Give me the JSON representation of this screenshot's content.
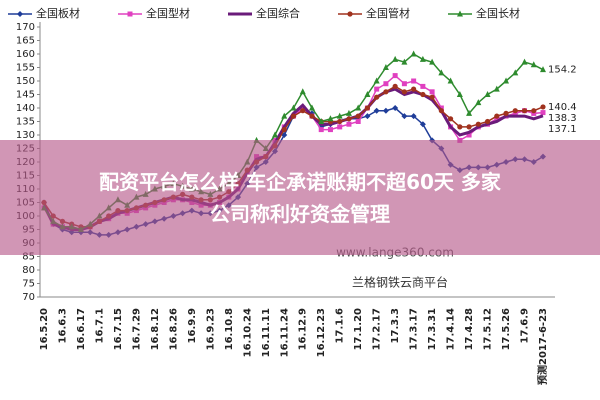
{
  "chart_data": {
    "type": "line",
    "categories": [
      "16.5.20",
      null,
      "16.6.3",
      null,
      "16.6.17",
      null,
      "16.7.1",
      null,
      "16.7.15",
      null,
      "16.7.29",
      null,
      "16.8.12",
      null,
      "16.8.26",
      null,
      "16.9.9",
      null,
      "16.9.23",
      null,
      "16.10.8",
      null,
      "16.10.24",
      null,
      "16.11.11",
      null,
      "16.11.24",
      null,
      "16.12.9",
      null,
      "16.12.23",
      null,
      "17.1.6",
      null,
      "17.1.20",
      null,
      "17.2.17",
      null,
      "17.3.3",
      null,
      "17.3.17",
      null,
      "17.3.31",
      null,
      "17.4.14",
      null,
      "17.4.28",
      null,
      "17.5.12",
      null,
      "17.5.26",
      null,
      "17.6.9",
      null,
      "预测2017-6-23"
    ],
    "series": [
      {
        "name": "全国板材",
        "color": "#1f3d99",
        "marker": "diamond",
        "label_last": false,
        "values": [
          105,
          97,
          95,
          94,
          94,
          94,
          93,
          93,
          94,
          95,
          96,
          97,
          98,
          99,
          100,
          101,
          102,
          101,
          101,
          102,
          104,
          107,
          112,
          118,
          120,
          124,
          130,
          137,
          140,
          138,
          133,
          134,
          135,
          136,
          136,
          137,
          139,
          139,
          140,
          137,
          137,
          134,
          128,
          125,
          119,
          117,
          118,
          118,
          118,
          119,
          120,
          121,
          121,
          120,
          122
        ]
      },
      {
        "name": "全国型材",
        "color": "#e040c0",
        "marker": "square",
        "label_last": true,
        "values": [
          103,
          97,
          96,
          96,
          95,
          96,
          98,
          99,
          101,
          101,
          102,
          103,
          104,
          105,
          106,
          106,
          105,
          104,
          104,
          105,
          107,
          110,
          116,
          122,
          122,
          128,
          133,
          137,
          140,
          137,
          132,
          132,
          133,
          134,
          135,
          140,
          147,
          149,
          152,
          149,
          150,
          148,
          146,
          140,
          133,
          128,
          130,
          133,
          134,
          136,
          137,
          138,
          139,
          138,
          138.3
        ]
      },
      {
        "name": "全国综合",
        "color": "#6a1b7a",
        "marker": "none",
        "label_last": true,
        "values": [
          104,
          97,
          96,
          95,
          95,
          96,
          98,
          99,
          101,
          102,
          103,
          104,
          105,
          106,
          107,
          106,
          106,
          105,
          104,
          105,
          107,
          110,
          116,
          121,
          122,
          127,
          133,
          138,
          141,
          137,
          134,
          134,
          135,
          136,
          137,
          140,
          144,
          146,
          147,
          145,
          146,
          145,
          143,
          139,
          133,
          130,
          131,
          133,
          134,
          135,
          137,
          137,
          137,
          136,
          137.1
        ]
      },
      {
        "name": "全国管材",
        "color": "#a0321e",
        "marker": "circle",
        "label_last": true,
        "values": [
          105,
          100,
          98,
          97,
          96,
          96,
          98,
          100,
          102,
          102,
          103,
          104,
          105,
          106,
          107,
          108,
          107,
          106,
          106,
          107,
          109,
          112,
          117,
          120,
          122,
          126,
          132,
          137,
          139,
          137,
          135,
          135,
          135,
          136,
          137,
          140,
          144,
          146,
          148,
          146,
          147,
          145,
          144,
          139,
          136,
          133,
          133,
          134,
          135,
          137,
          138,
          139,
          139,
          139,
          140.4
        ]
      },
      {
        "name": "全国长材",
        "color": "#2e8b2e",
        "marker": "triangle",
        "label_last": true,
        "values": [
          103,
          98,
          96,
          96,
          95,
          97,
          100,
          103,
          106,
          104,
          107,
          108,
          110,
          111,
          112,
          111,
          110,
          109,
          108,
          110,
          112,
          115,
          120,
          128,
          125,
          130,
          137,
          140,
          146,
          140,
          135,
          136,
          137,
          138,
          140,
          145,
          150,
          155,
          158,
          157,
          160,
          158,
          157,
          153,
          150,
          145,
          138,
          142,
          145,
          147,
          150,
          153,
          157,
          156,
          154.2
        ]
      }
    ],
    "ylim": [
      70,
      170
    ],
    "yticks": [
      70,
      75,
      80,
      85,
      90,
      95,
      100,
      105,
      110,
      115,
      120,
      125,
      130,
      135,
      140,
      145,
      150,
      155,
      160,
      165,
      170
    ],
    "grid": false
  },
  "watermark": [
    "www.lange360.com",
    "兰格钢铁云商平台"
  ],
  "banner": [
    "配资平台怎么样 车企承诺账期不超60天 多家公司称利好资金管理"
  ]
}
